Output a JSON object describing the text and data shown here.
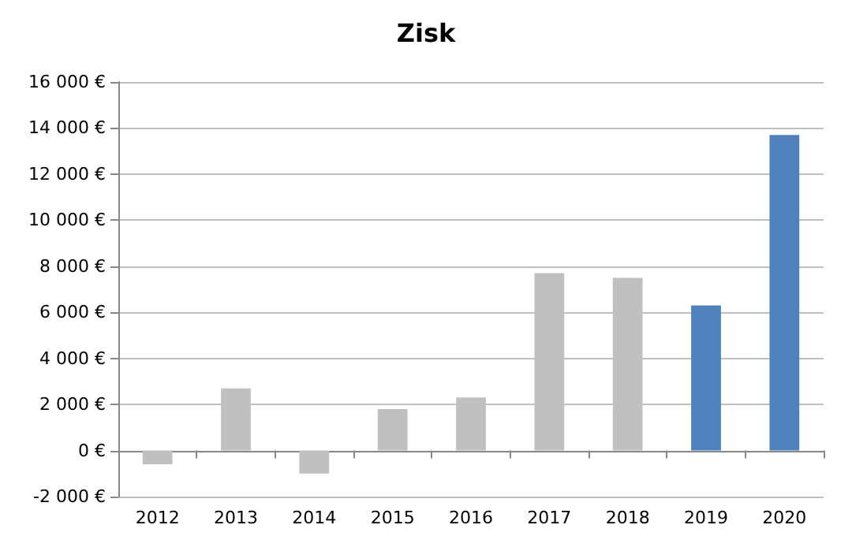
{
  "chart_data": {
    "type": "bar",
    "title": "Zisk",
    "categories": [
      "2012",
      "2013",
      "2014",
      "2015",
      "2016",
      "2017",
      "2018",
      "2019",
      "2020"
    ],
    "values": [
      -600,
      2700,
      -1000,
      1800,
      2300,
      7700,
      7500,
      6300,
      13700
    ],
    "colors": [
      "#c0c0c0",
      "#c0c0c0",
      "#c0c0c0",
      "#c0c0c0",
      "#c0c0c0",
      "#c0c0c0",
      "#c0c0c0",
      "#4f81bd",
      "#4f81bd"
    ],
    "ylim": [
      -2000,
      16000
    ],
    "yticks": [
      {
        "value": -2000,
        "label": "-2 000 €"
      },
      {
        "value": 0,
        "label": "0 €"
      },
      {
        "value": 2000,
        "label": "2 000 €"
      },
      {
        "value": 4000,
        "label": "4 000 €"
      },
      {
        "value": 6000,
        "label": "6 000 €"
      },
      {
        "value": 8000,
        "label": "8 000 €"
      },
      {
        "value": 10000,
        "label": "10 000 €"
      },
      {
        "value": 12000,
        "label": "12 000 €"
      },
      {
        "value": 14000,
        "label": "14 000 €"
      },
      {
        "value": 16000,
        "label": "16 000 €"
      }
    ],
    "grid": "y"
  }
}
